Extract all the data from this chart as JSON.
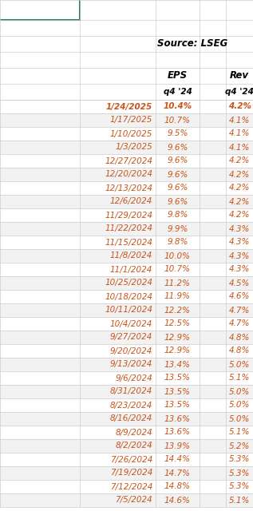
{
  "source_text": "Source: LSEG",
  "rows": [
    {
      "date": "1/24/2025",
      "eps": "10.4%",
      "rev": "4.2%",
      "bold": true
    },
    {
      "date": "1/17/2025",
      "eps": "10.7%",
      "rev": "4.1%",
      "bold": false
    },
    {
      "date": "1/10/2025",
      "eps": "9.5%",
      "rev": "4.1%",
      "bold": false
    },
    {
      "date": "1/3/2025",
      "eps": "9.6%",
      "rev": "4.1%",
      "bold": false
    },
    {
      "date": "12/27/2024",
      "eps": "9.6%",
      "rev": "4.2%",
      "bold": false
    },
    {
      "date": "12/20/2024",
      "eps": "9.6%",
      "rev": "4.2%",
      "bold": false
    },
    {
      "date": "12/13/2024",
      "eps": "9.6%",
      "rev": "4.2%",
      "bold": false
    },
    {
      "date": "12/6/2024",
      "eps": "9.6%",
      "rev": "4.2%",
      "bold": false
    },
    {
      "date": "11/29/2024",
      "eps": "9.8%",
      "rev": "4.2%",
      "bold": false
    },
    {
      "date": "11/22/2024",
      "eps": "9.9%",
      "rev": "4.3%",
      "bold": false
    },
    {
      "date": "11/15/2024",
      "eps": "9.8%",
      "rev": "4.3%",
      "bold": false
    },
    {
      "date": "11/8/2024",
      "eps": "10.0%",
      "rev": "4.3%",
      "bold": false
    },
    {
      "date": "11/1/2024",
      "eps": "10.7%",
      "rev": "4.3%",
      "bold": false
    },
    {
      "date": "10/25/2024",
      "eps": "11.2%",
      "rev": "4.5%",
      "bold": false
    },
    {
      "date": "10/18/2024",
      "eps": "11.9%",
      "rev": "4.6%",
      "bold": false
    },
    {
      "date": "10/11/2024",
      "eps": "12.2%",
      "rev": "4.7%",
      "bold": false
    },
    {
      "date": "10/4/2024",
      "eps": "12.5%",
      "rev": "4.7%",
      "bold": false
    },
    {
      "date": "9/27/2024",
      "eps": "12.9%",
      "rev": "4.8%",
      "bold": false
    },
    {
      "date": "9/20/2024",
      "eps": "12.9%",
      "rev": "4.8%",
      "bold": false
    },
    {
      "date": "9/13/2024",
      "eps": "13.4%",
      "rev": "5.0%",
      "bold": false
    },
    {
      "date": "9/6/2024",
      "eps": "13.5%",
      "rev": "5.1%",
      "bold": false
    },
    {
      "date": "8/31/2024",
      "eps": "13.5%",
      "rev": "5.0%",
      "bold": false
    },
    {
      "date": "8/23/2024",
      "eps": "13.5%",
      "rev": "5.0%",
      "bold": false
    },
    {
      "date": "8/16/2024",
      "eps": "13.6%",
      "rev": "5.0%",
      "bold": false
    },
    {
      "date": "8/9/2024",
      "eps": "13.6%",
      "rev": "5.1%",
      "bold": false
    },
    {
      "date": "8/2/2024",
      "eps": "13.9%",
      "rev": "5.2%",
      "bold": false
    },
    {
      "date": "7/26/2024",
      "eps": "14.4%",
      "rev": "5.3%",
      "bold": false
    },
    {
      "date": "7/19/2024",
      "eps": "14.7%",
      "rev": "5.3%",
      "bold": false
    },
    {
      "date": "7/12/2024",
      "eps": "14.8%",
      "rev": "5.3%",
      "bold": false
    },
    {
      "date": "7/5/2024",
      "eps": "14.6%",
      "rev": "5.1%",
      "bold": false
    }
  ],
  "date_color": "#C8541A",
  "eps_color": "#C8541A",
  "rev_color": "#C8541A",
  "header_color": "#000000",
  "grid_color": "#CCCCCC",
  "bg_color": "#FFFFFF",
  "green_color": "#2E7D4F",
  "font_size": 7.5,
  "header_font_size": 8.5
}
